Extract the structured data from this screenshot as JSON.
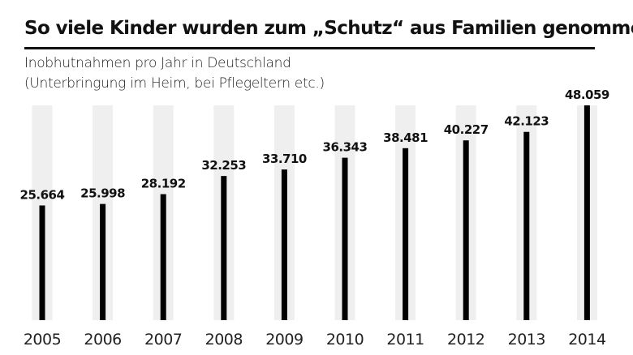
{
  "title": "So viele Kinder wurden zum „Schutz“ aus Familien genommen",
  "subtitle_lines": [
    "Inobhutnahmen pro Jahr in Deutschland",
    "(Unterbringung im Heim, bei Pflegeltern etc.)"
  ],
  "colors": {
    "bar": "#000000",
    "track": "#efefef",
    "text": "#111111"
  },
  "chart_data": {
    "type": "bar",
    "title": "So viele Kinder wurden zum „Schutz“ aus Familien genommen",
    "subtitle": "Inobhutnahmen pro Jahr in Deutschland (Unterbringung im Heim, bei Pflegeltern etc.)",
    "categories": [
      "2005",
      "2006",
      "2007",
      "2008",
      "2009",
      "2010",
      "2011",
      "2012",
      "2013",
      "2014"
    ],
    "values": [
      25664,
      25998,
      28192,
      32253,
      33710,
      36343,
      38481,
      40227,
      42123,
      48059
    ],
    "labels": [
      "25.664",
      "25.998",
      "28.192",
      "32.253",
      "33.710",
      "36.343",
      "38.481",
      "40.227",
      "42.123",
      "48.059"
    ],
    "xlabel": "",
    "ylabel": "",
    "ylim": [
      0,
      48059
    ],
    "grid": false,
    "legend": "none"
  }
}
